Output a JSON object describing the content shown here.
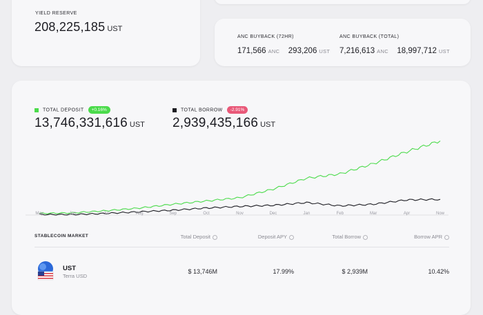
{
  "yield_reserve": {
    "label": "YIELD RESERVE",
    "value": "208,225,185",
    "unit": "UST"
  },
  "buyback": {
    "label_72hr": "ANC BUYBACK (72HR)",
    "anc_72hr": "171,566",
    "ust_72hr": "293,206",
    "label_total": "ANC BUYBACK (TOTAL)",
    "anc_total": "7,216,613",
    "ust_total": "18,997,712",
    "unit_anc": "ANC",
    "unit_ust": "UST"
  },
  "market": {
    "deposit": {
      "label": "TOTAL DEPOSIT",
      "change": "+0.16%",
      "value": "13,746,331,616",
      "unit": "UST",
      "color": "#4bdb4b"
    },
    "borrow": {
      "label": "TOTAL BORROW",
      "change": "-2.91%",
      "value": "2,939,435,166",
      "unit": "UST",
      "color": "#1c1c22"
    },
    "badge_up_color": "#4bdb4b",
    "badge_down_color": "#e95979"
  },
  "chart_data": {
    "type": "line",
    "x": [
      "May",
      "Jun",
      "Jul",
      "Aug",
      "Sep",
      "Oct",
      "Nov",
      "Dec",
      "Jan",
      "Feb",
      "Mar",
      "Apr",
      "Now"
    ],
    "series": [
      {
        "name": "TOTAL DEPOSIT",
        "color": "#4bdb4b",
        "values": [
          0.03,
          0.04,
          0.08,
          0.13,
          0.2,
          0.26,
          0.32,
          0.48,
          0.68,
          0.76,
          0.95,
          1.17,
          1.37
        ]
      },
      {
        "name": "TOTAL BORROW",
        "color": "#1c1c22",
        "values": [
          0.01,
          0.01,
          0.03,
          0.06,
          0.09,
          0.13,
          0.16,
          0.18,
          0.23,
          0.17,
          0.2,
          0.28,
          0.29
        ]
      }
    ],
    "ylim": [
      0,
      1.4
    ],
    "grid": false,
    "xlabel": "",
    "ylabel": ""
  },
  "table": {
    "title": "STABLECOIN MARKET",
    "headers": [
      "Total Deposit",
      "Deposit APY",
      "Total Borrow",
      "Borrow APR"
    ],
    "row": {
      "symbol": "UST",
      "name": "Terra USD",
      "total_deposit": "$ 13,746M",
      "deposit_apy": "17.99%",
      "total_borrow": "$ 2,939M",
      "borrow_apr": "10.42%"
    }
  }
}
